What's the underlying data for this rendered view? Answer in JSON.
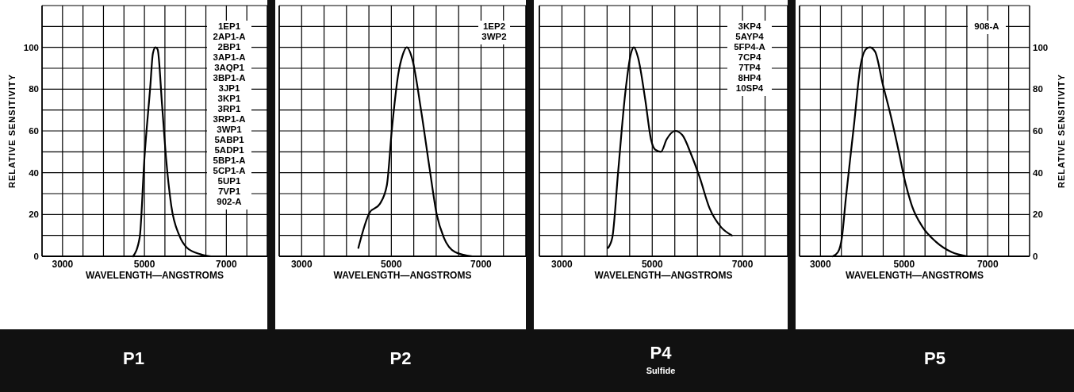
{
  "chart_data": [
    {
      "type": "line",
      "title": "P1",
      "xlabel": "WAVELENGTH—ANGSTROMS",
      "ylabel": "RELATIVE SENSITIVITY",
      "grid": true,
      "marker": "none",
      "line_style": "solid",
      "xlim": [
        2500,
        8000
      ],
      "xticks": [
        {
          "value": 2500,
          "label": null
        },
        3000,
        {
          "value": 3500,
          "label": null
        },
        {
          "value": 4000,
          "label": null
        },
        {
          "value": 4500,
          "label": null
        },
        5000,
        {
          "value": 5500,
          "label": null
        },
        {
          "value": 6000,
          "label": null
        },
        {
          "value": 6500,
          "label": null
        },
        7000,
        {
          "value": 7500,
          "label": null
        }
      ],
      "ylim": [
        0,
        120
      ],
      "yticks": [
        0,
        {
          "value": 10,
          "label": null
        },
        20,
        {
          "value": 30,
          "label": null
        },
        40,
        {
          "value": 50,
          "label": null
        },
        60,
        {
          "value": 70,
          "label": null
        },
        80,
        {
          "value": 90,
          "label": null
        },
        100,
        {
          "value": 110,
          "label": null
        }
      ],
      "annotations": [
        "1EP1",
        "2AP1-A",
        "2BP1",
        "3AP1-A",
        "3AQP1",
        "3BP1-A",
        "3JP1",
        "3KP1",
        "3RP1",
        "3RP1-A",
        "3WP1",
        "5ABP1",
        "5ADP1",
        "5BP1-A",
        "5CP1-A",
        "5UP1",
        "7VP1",
        "902-A"
      ],
      "series": [
        {
          "color": "#000000",
          "x": [
            4723,
            4884,
            5000,
            5142,
            5206,
            5270,
            5322,
            5432,
            5528,
            5657,
            5851,
            6044,
            6366,
            6624
          ],
          "values": [
            0,
            9,
            47,
            81,
            97,
            100,
            99,
            72,
            47,
            24,
            10,
            4,
            1,
            0
          ]
        }
      ]
    },
    {
      "type": "line",
      "title": "P2",
      "xlabel": "WAVELENGTH—ANGSTROMS",
      "grid": true,
      "marker": "none",
      "line_style": "solid",
      "tick_labels": "x",
      "xlim": [
        2500,
        8000
      ],
      "xticks": [
        {
          "value": 2500,
          "label": null
        },
        3000,
        {
          "value": 3500,
          "label": null
        },
        {
          "value": 4000,
          "label": null
        },
        {
          "value": 4500,
          "label": null
        },
        5000,
        {
          "value": 5500,
          "label": null
        },
        {
          "value": 6000,
          "label": null
        },
        {
          "value": 6500,
          "label": null
        },
        7000,
        {
          "value": 7500,
          "label": null
        }
      ],
      "ylim": [
        0,
        120
      ],
      "yticks": [
        0,
        {
          "value": 10,
          "label": null
        },
        20,
        {
          "value": 30,
          "label": null
        },
        40,
        {
          "value": 50,
          "label": null
        },
        60,
        {
          "value": 70,
          "label": null
        },
        80,
        {
          "value": 90,
          "label": null
        },
        100,
        {
          "value": 110,
          "label": null
        }
      ],
      "annotations": [
        "1EP2",
        "3WP2"
      ],
      "series": [
        {
          "color": "#000000",
          "x": [
            4264,
            4518,
            4741,
            4900,
            5013,
            5153,
            5248,
            5344,
            5471,
            5662,
            5853,
            6012,
            6170,
            6425,
            6807
          ],
          "values": [
            4,
            21,
            25,
            34,
            61,
            87,
            96,
            100,
            94,
            70,
            42,
            20,
            9,
            2,
            0
          ]
        }
      ]
    },
    {
      "type": "line",
      "title": "P4",
      "subtitle": "Sulfide",
      "xlabel": "WAVELENGTH—ANGSTROMS",
      "grid": true,
      "marker": "none",
      "line_style": "solid",
      "tick_labels": "x",
      "xlim": [
        2500,
        8000
      ],
      "xticks": [
        {
          "value": 2500,
          "label": null
        },
        3000,
        {
          "value": 3500,
          "label": null
        },
        {
          "value": 4000,
          "label": null
        },
        {
          "value": 4500,
          "label": null
        },
        5000,
        {
          "value": 5500,
          "label": null
        },
        {
          "value": 6000,
          "label": null
        },
        {
          "value": 6500,
          "label": null
        },
        7000,
        {
          "value": 7500,
          "label": null
        }
      ],
      "ylim": [
        0,
        120
      ],
      "yticks": [
        0,
        {
          "value": 10,
          "label": null
        },
        20,
        {
          "value": 30,
          "label": null
        },
        40,
        {
          "value": 50,
          "label": null
        },
        60,
        {
          "value": 70,
          "label": null
        },
        80,
        {
          "value": 90,
          "label": null
        },
        100,
        {
          "value": 110,
          "label": null
        }
      ],
      "annotations": [
        "3KP4",
        "5AYP4",
        "5FP4-A",
        "7CP4",
        "7TP4",
        "8HP4",
        "10SP4"
      ],
      "series": [
        {
          "color": "#000000",
          "x": [
            4021,
            4116,
            4243,
            4402,
            4528,
            4592,
            4687,
            4845,
            4972,
            5067,
            5193,
            5320,
            5510,
            5668,
            5858,
            6048,
            6270,
            6523,
            6764
          ],
          "values": [
            4,
            9,
            40,
            78,
            97,
            100,
            95,
            75,
            56,
            51,
            50,
            56,
            60,
            58,
            49,
            38,
            23,
            14,
            10
          ]
        }
      ]
    },
    {
      "type": "line",
      "title": "P5",
      "xlabel": "WAVELENGTH—ANGSTROMS",
      "y2label": "RELATIVE SENSITIVITY",
      "grid": true,
      "marker": "none",
      "line_style": "solid",
      "xlim": [
        2500,
        8000
      ],
      "xticks": [
        {
          "value": 2500,
          "label": null
        },
        3000,
        {
          "value": 3500,
          "label": null
        },
        {
          "value": 4000,
          "label": null
        },
        {
          "value": 4500,
          "label": null
        },
        5000,
        {
          "value": 5500,
          "label": null
        },
        {
          "value": 6000,
          "label": null
        },
        {
          "value": 6500,
          "label": null
        },
        7000,
        {
          "value": 7500,
          "label": null
        }
      ],
      "y2lim": [
        0,
        120
      ],
      "y2ticks": [
        0,
        {
          "value": 10,
          "label": null
        },
        20,
        {
          "value": 30,
          "label": null
        },
        40,
        {
          "value": 50,
          "label": null
        },
        60,
        {
          "value": 70,
          "label": null
        },
        80,
        {
          "value": 90,
          "label": null
        },
        100,
        {
          "value": 110,
          "label": null
        }
      ],
      "annotations": [
        "908-A"
      ],
      "series": [
        {
          "color": "#000000",
          "axis": "y2",
          "x": [
            3291,
            3418,
            3513,
            3608,
            3797,
            3956,
            4082,
            4177,
            4304,
            4494,
            4684,
            4873,
            5032,
            5190,
            5443,
            5759,
            6139,
            6519
          ],
          "values": [
            0,
            2,
            9,
            28,
            62,
            91,
            99,
            100,
            98,
            82,
            67,
            50,
            35,
            24,
            14,
            7,
            2,
            0
          ]
        }
      ]
    }
  ]
}
